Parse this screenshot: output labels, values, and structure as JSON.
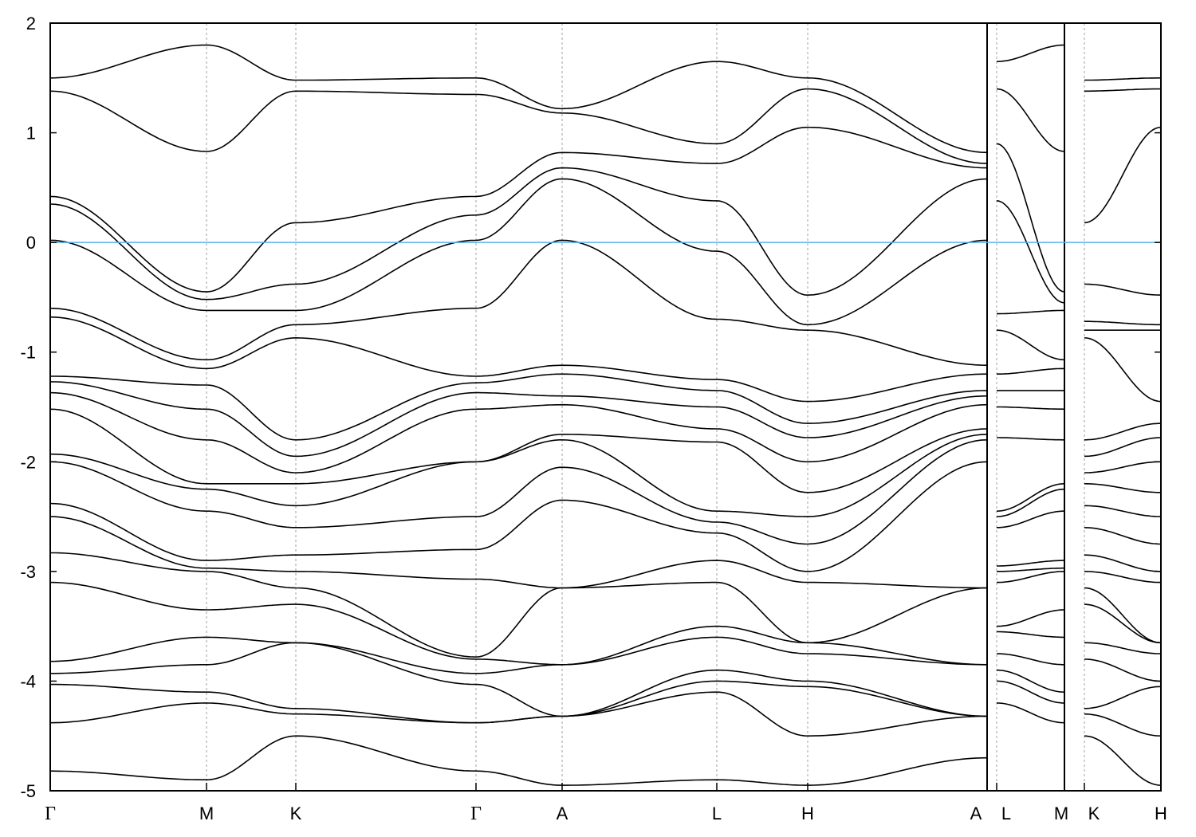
{
  "chart_data": {
    "type": "line",
    "title": "",
    "xlabel": "",
    "ylabel": "",
    "ylim": [
      -5,
      2
    ],
    "yticks": [
      -5,
      -4,
      -3,
      -2,
      -1,
      0,
      1,
      2
    ],
    "grid": "vertical dashed lines at high-symmetry points",
    "fermi_level": 0,
    "colors": {
      "bands": "#000000",
      "fermi_line": "#56b4e9",
      "grid": "#a0a0a0"
    },
    "kpoints": [
      {
        "label": "Γ",
        "k": 0.0
      },
      {
        "label": "M",
        "k": 1.96
      },
      {
        "label": "K",
        "k": 3.08
      },
      {
        "label": "Γ",
        "k": 5.34
      },
      {
        "label": "A",
        "k": 6.42
      },
      {
        "label": "L",
        "k": 8.36
      },
      {
        "label": "H",
        "k": 9.5
      },
      {
        "label": "A",
        "k": 11.75
      },
      {
        "label": "L",
        "k": 11.87
      },
      {
        "label": "M",
        "k": 12.72
      },
      {
        "label": "K",
        "k": 12.97
      },
      {
        "label": "H",
        "k": 13.93
      }
    ],
    "path_breaks_after": [
      7,
      9
    ],
    "bands": [
      [
        1.5,
        1.8,
        1.48,
        1.5,
        1.22,
        1.65,
        1.5,
        0.82,
        1.65,
        1.8,
        1.48,
        1.5
      ],
      [
        1.38,
        0.83,
        1.38,
        1.35,
        1.18,
        0.9,
        1.4,
        0.72,
        1.4,
        0.83,
        1.38,
        1.4
      ],
      [
        0.42,
        -0.45,
        0.18,
        0.42,
        0.82,
        0.72,
        1.05,
        0.68,
        0.9,
        -0.45,
        0.18,
        1.05
      ],
      [
        0.35,
        -0.52,
        -0.38,
        0.25,
        0.68,
        0.38,
        -0.48,
        0.58,
        0.38,
        -0.55,
        -0.38,
        -0.48
      ],
      [
        0.02,
        -0.62,
        -0.62,
        0.02,
        0.58,
        -0.08,
        -0.75,
        0.02,
        -0.65,
        -0.62,
        -0.72,
        -0.75
      ],
      [
        -0.6,
        -1.07,
        -0.75,
        -0.6,
        0.02,
        -0.7,
        -0.8,
        -1.12,
        -0.8,
        -1.07,
        -0.8,
        -0.8
      ],
      [
        -0.68,
        -1.15,
        -0.87,
        -1.22,
        -1.12,
        -1.25,
        -1.45,
        -1.2,
        -1.2,
        -1.15,
        -0.87,
        -1.45
      ],
      [
        -1.22,
        -1.3,
        -1.8,
        -1.28,
        -1.2,
        -1.35,
        -1.65,
        -1.35,
        -1.35,
        -1.35,
        -1.8,
        -1.65
      ],
      [
        -1.27,
        -1.52,
        -1.95,
        -1.37,
        -1.4,
        -1.5,
        -1.78,
        -1.4,
        -1.5,
        -1.52,
        -1.95,
        -1.78
      ],
      [
        -1.37,
        -1.8,
        -2.1,
        -1.52,
        -1.48,
        -1.7,
        -2.0,
        -1.48,
        -1.78,
        -1.8,
        -2.1,
        -2.0
      ],
      [
        -1.52,
        -2.2,
        -2.2,
        -2.0,
        -1.75,
        -1.82,
        -2.28,
        -1.7,
        -2.45,
        -2.2,
        -2.2,
        -2.28
      ],
      [
        -1.93,
        -2.25,
        -2.4,
        -2.0,
        -1.8,
        -2.45,
        -2.5,
        -1.75,
        -2.5,
        -2.25,
        -2.4,
        -2.5
      ],
      [
        -2.0,
        -2.45,
        -2.6,
        -2.5,
        -2.05,
        -2.55,
        -2.75,
        -1.8,
        -2.6,
        -2.45,
        -2.6,
        -2.75
      ],
      [
        -2.38,
        -2.9,
        -2.85,
        -2.8,
        -2.35,
        -2.65,
        -3.0,
        -2.0,
        -2.95,
        -2.9,
        -2.85,
        -3.0
      ],
      [
        -2.5,
        -2.97,
        -3.0,
        -3.07,
        -3.15,
        -2.9,
        -3.1,
        -3.15,
        -3.0,
        -2.97,
        -3.0,
        -3.1
      ],
      [
        -2.83,
        -3.0,
        -3.15,
        -3.78,
        -3.15,
        -3.1,
        -3.65,
        -3.15,
        -3.1,
        -3.0,
        -3.15,
        -3.65
      ],
      [
        -3.1,
        -3.35,
        -3.3,
        -3.8,
        -3.85,
        -3.5,
        -3.65,
        -3.85,
        -3.5,
        -3.35,
        -3.3,
        -3.65
      ],
      [
        -3.82,
        -3.6,
        -3.65,
        -3.93,
        -3.85,
        -3.6,
        -3.75,
        -3.85,
        -3.55,
        -3.6,
        -3.65,
        -3.75
      ],
      [
        -3.93,
        -3.85,
        -3.65,
        -4.03,
        -4.32,
        -3.9,
        -4.0,
        -4.32,
        -3.75,
        -3.85,
        -3.8,
        -4.0
      ],
      [
        -4.03,
        -4.1,
        -4.25,
        -4.38,
        -4.32,
        -4.0,
        -4.05,
        -4.32,
        -3.9,
        -4.1,
        -4.25,
        -4.05
      ],
      [
        -4.38,
        -4.2,
        -4.3,
        -4.38,
        -4.32,
        -4.1,
        -4.5,
        -4.32,
        -4.0,
        -4.2,
        -4.3,
        -4.5
      ],
      [
        -4.82,
        -4.9,
        -4.5,
        -4.82,
        -4.95,
        -4.9,
        -4.95,
        -4.7,
        -4.2,
        -4.38,
        -4.5,
        -4.95
      ]
    ]
  }
}
